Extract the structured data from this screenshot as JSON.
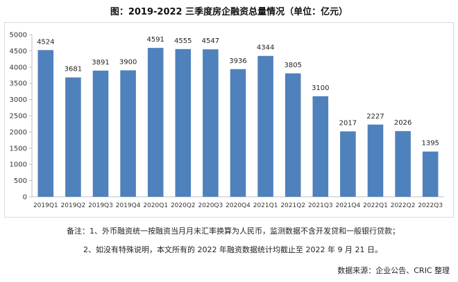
{
  "title": "图：2019-2022 三季度房企融资总量情况（单位：亿元）",
  "notes": {
    "line1": "备注：1、外币融资统一按融资当月月末汇率换算为人民币，监测数据不含开发贷和一般银行贷款；",
    "line2": "2、如没有特殊说明，本文所有的 2022 年融资数据统计均截止至 2022 年 9 月 21 日。"
  },
  "source": "数据来源：企业公告、CRIC 整理",
  "chart_data": {
    "type": "bar",
    "categories": [
      "2019Q1",
      "2019Q2",
      "2019Q3",
      "2019Q4",
      "2020Q1",
      "2020Q2",
      "2020Q3",
      "2020Q4",
      "2021Q1",
      "2021Q2",
      "2021Q3",
      "2021Q4",
      "2022Q1",
      "2022Q2",
      "2022Q3"
    ],
    "values": [
      4524,
      3681,
      3891,
      3900,
      4591,
      4555,
      4547,
      3936,
      4344,
      3805,
      3100,
      2017,
      2227,
      2026,
      1395
    ],
    "ylim": [
      0,
      5000
    ],
    "yticks": [
      0,
      500,
      1000,
      1500,
      2000,
      2500,
      3000,
      3500,
      4000,
      4500,
      5000
    ],
    "grid": false,
    "bar_color": "#4f81bd"
  }
}
